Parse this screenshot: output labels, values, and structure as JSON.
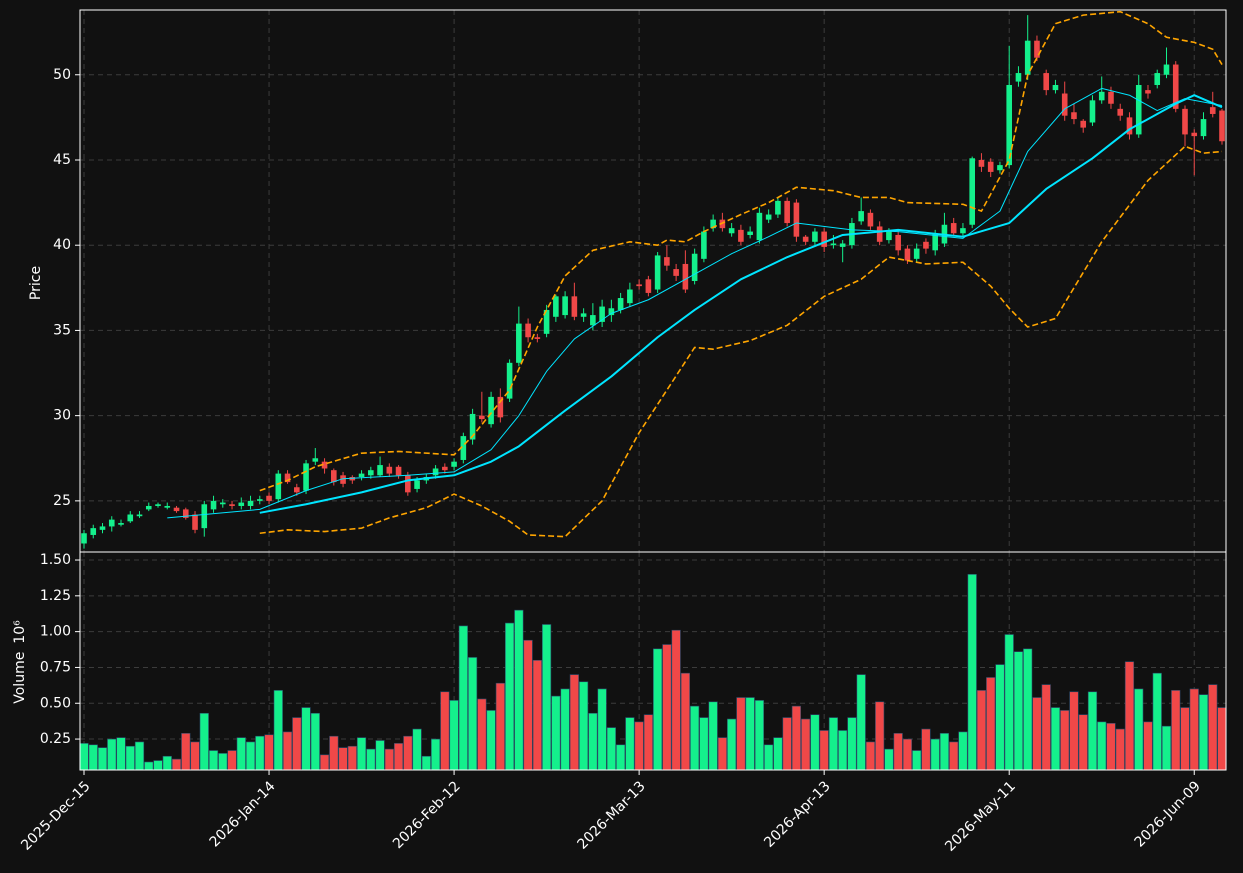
{
  "chart_data": [
    {
      "type": "candlestick",
      "ylabel": "Price",
      "ylim": [
        22.0,
        53.8
      ],
      "yticks": [
        25,
        30,
        35,
        40,
        45,
        50
      ],
      "grid": true,
      "up_color": "#14f08c",
      "down_color": "#f04848",
      "open": [
        22.5,
        23.0,
        23.3,
        23.5,
        23.6,
        23.8,
        24.1,
        24.5,
        24.7,
        24.6,
        24.6,
        24.5,
        24.2,
        23.4,
        24.5,
        24.8,
        24.8,
        24.7,
        24.7,
        25.0,
        25.3,
        25.1,
        26.6,
        25.8,
        25.6,
        27.3,
        27.3,
        26.8,
        26.5,
        26.4,
        26.4,
        26.5,
        26.5,
        27.0,
        27.0,
        26.5,
        25.7,
        26.2,
        26.5,
        27.0,
        27.0,
        27.4,
        28.6,
        30.0,
        29.5,
        31.1,
        31.0,
        33.1,
        35.4,
        34.6,
        34.8,
        35.8,
        35.9,
        37.0,
        35.8,
        35.3,
        35.5,
        35.9,
        36.2,
        36.6,
        37.7,
        38.0,
        37.4,
        39.3,
        38.6,
        38.9,
        37.9,
        39.2,
        41.0,
        41.5,
        40.7,
        40.9,
        40.6,
        40.3,
        41.5,
        41.8,
        42.6,
        42.5,
        40.5,
        40.2,
        40.8,
        40.0,
        39.9,
        40.0,
        41.4,
        41.9,
        41.1,
        40.3,
        40.6,
        39.8,
        39.2,
        40.2,
        39.7,
        40.1,
        41.3,
        40.7,
        41.2,
        45.0,
        44.9,
        44.4,
        44.7,
        49.6,
        50.0,
        52.0,
        50.1,
        49.1,
        48.9,
        47.8,
        47.3,
        47.2,
        48.5,
        49.0,
        48.0,
        47.5,
        46.5,
        49.1,
        49.4,
        50.0,
        50.6,
        48.0,
        46.6,
        46.4,
        48.1,
        47.9
      ],
      "high": [
        23.3,
        23.6,
        23.7,
        24.1,
        23.9,
        24.4,
        24.4,
        24.9,
        24.9,
        24.9,
        24.7,
        24.6,
        24.4,
        25.0,
        25.3,
        25.1,
        25.0,
        25.2,
        25.3,
        25.3,
        25.5,
        26.8,
        26.8,
        26.0,
        27.4,
        28.1,
        27.5,
        26.9,
        26.7,
        26.5,
        26.8,
        27.0,
        27.6,
        27.2,
        27.1,
        26.7,
        26.4,
        26.6,
        27.1,
        27.2,
        27.5,
        29.0,
        30.4,
        31.4,
        31.4,
        31.6,
        33.3,
        36.4,
        35.7,
        34.8,
        36.5,
        37.1,
        37.3,
        37.8,
        36.3,
        36.6,
        36.8,
        36.8,
        37.2,
        37.8,
        38.0,
        38.2,
        39.6,
        40.0,
        38.9,
        39.7,
        39.8,
        41.1,
        41.8,
        41.9,
        41.3,
        41.2,
        41.1,
        42.2,
        42.1,
        42.8,
        42.8,
        42.7,
        40.6,
        41.0,
        41.0,
        40.6,
        40.3,
        41.6,
        42.8,
        42.1,
        41.4,
        41.0,
        40.9,
        40.0,
        40.1,
        40.4,
        40.9,
        41.9,
        41.6,
        41.3,
        45.2,
        45.4,
        45.1,
        44.9,
        51.7,
        50.5,
        53.5,
        52.3,
        50.3,
        49.7,
        49.6,
        48.3,
        47.4,
        48.8,
        49.9,
        49.3,
        48.3,
        47.8,
        50.0,
        49.4,
        50.3,
        51.6,
        50.8,
        48.2,
        46.8,
        47.8,
        49.0,
        48.0
      ],
      "low": [
        22.2,
        22.8,
        23.1,
        23.2,
        23.5,
        23.7,
        24.0,
        24.4,
        24.6,
        24.5,
        24.3,
        23.9,
        23.1,
        22.9,
        24.3,
        24.6,
        24.5,
        24.5,
        24.5,
        24.8,
        24.8,
        24.9,
        26.0,
        25.3,
        25.4,
        27.1,
        26.6,
        25.9,
        25.8,
        26.0,
        26.2,
        26.3,
        26.4,
        26.4,
        26.3,
        25.3,
        25.5,
        26.0,
        26.3,
        26.6,
        26.8,
        27.2,
        28.3,
        29.6,
        29.3,
        29.6,
        30.8,
        32.9,
        34.3,
        34.3,
        34.6,
        35.5,
        35.7,
        35.6,
        35.5,
        35.0,
        35.2,
        35.5,
        36.0,
        36.4,
        37.4,
        37.0,
        37.2,
        38.5,
        37.9,
        37.2,
        37.7,
        39.0,
        40.8,
        40.8,
        40.5,
        40.0,
        40.4,
        40.1,
        41.3,
        41.6,
        41.1,
        40.2,
        40.0,
        40.0,
        39.6,
        39.8,
        39.0,
        39.8,
        41.2,
        40.9,
        40.0,
        40.1,
        39.4,
        38.9,
        39.0,
        39.5,
        39.4,
        39.9,
        40.5,
        40.5,
        41.0,
        44.3,
        44.0,
        44.2,
        44.5,
        49.3,
        49.7,
        50.8,
        48.8,
        48.9,
        47.3,
        47.1,
        46.6,
        47.0,
        48.3,
        48.0,
        47.3,
        46.2,
        46.3,
        48.6,
        49.2,
        49.8,
        47.8,
        45.8,
        44.1,
        46.2,
        47.5,
        45.9
      ],
      "close": [
        23.1,
        23.4,
        23.5,
        23.9,
        23.7,
        24.2,
        24.2,
        24.7,
        24.8,
        24.7,
        24.4,
        24.0,
        23.3,
        24.8,
        25.0,
        24.9,
        24.7,
        24.9,
        25.0,
        25.1,
        25.0,
        26.6,
        26.1,
        25.5,
        27.2,
        27.5,
        26.9,
        26.1,
        26.0,
        26.2,
        26.6,
        26.8,
        27.1,
        26.6,
        26.5,
        25.5,
        26.2,
        26.4,
        26.9,
        26.8,
        27.3,
        28.8,
        30.1,
        29.8,
        31.1,
        29.9,
        33.1,
        35.4,
        34.6,
        34.5,
        36.2,
        37.0,
        37.0,
        35.8,
        36.0,
        35.9,
        36.4,
        36.3,
        36.9,
        37.4,
        37.6,
        37.2,
        39.4,
        38.8,
        38.2,
        37.4,
        39.5,
        40.8,
        41.5,
        41.0,
        41.0,
        40.2,
        40.8,
        41.9,
        41.8,
        42.6,
        41.3,
        40.5,
        40.2,
        40.8,
        39.9,
        40.1,
        40.1,
        41.3,
        42.0,
        41.1,
        40.2,
        40.8,
        39.7,
        39.1,
        39.8,
        39.8,
        40.7,
        41.2,
        40.7,
        41.0,
        45.1,
        44.6,
        44.3,
        44.7,
        49.4,
        50.1,
        52.0,
        51.0,
        49.1,
        49.4,
        47.6,
        47.4,
        46.9,
        48.5,
        49.0,
        48.3,
        47.6,
        46.5,
        49.4,
        48.9,
        50.1,
        50.6,
        48.0,
        46.5,
        46.4,
        47.4,
        47.7,
        46.1
      ],
      "lines": [
        {
          "color": "#00e5ff",
          "width": 1,
          "dash": false,
          "x": [
            9,
            19,
            24,
            28,
            35,
            40,
            44,
            47,
            50,
            53,
            57,
            61,
            66,
            70,
            74,
            77,
            83,
            88,
            95,
            99,
            102,
            106,
            110,
            113,
            116,
            119,
            123
          ],
          "values": [
            24.0,
            24.5,
            25.6,
            26.3,
            26.5,
            26.7,
            28.0,
            30.0,
            32.6,
            34.5,
            36.0,
            36.8,
            38.3,
            39.5,
            40.5,
            41.3,
            40.9,
            40.8,
            40.4,
            42.0,
            45.5,
            48.0,
            49.2,
            48.8,
            47.9,
            48.6,
            48.2
          ]
        },
        {
          "color": "#00e5ff",
          "width": 2,
          "dash": false,
          "x": [
            19,
            24,
            30,
            35,
            40,
            44,
            47,
            52,
            57,
            62,
            66,
            71,
            76,
            82,
            88,
            95,
            100,
            104,
            109,
            113,
            118,
            120,
            123
          ],
          "values": [
            24.3,
            24.8,
            25.5,
            26.2,
            26.5,
            27.3,
            28.2,
            30.3,
            32.3,
            34.6,
            36.2,
            38.0,
            39.3,
            40.6,
            40.9,
            40.5,
            41.3,
            43.3,
            45.1,
            46.8,
            48.3,
            48.8,
            48.1
          ]
        },
        {
          "color": "#ffa500",
          "width": 1.6,
          "dash": true,
          "x": [
            19,
            22,
            25,
            30,
            34,
            40,
            42,
            46,
            49,
            52,
            55,
            59,
            62,
            63,
            65,
            67,
            71,
            74,
            77,
            81,
            84,
            87,
            89,
            95,
            97,
            100,
            102,
            105,
            108,
            112,
            115,
            117,
            120,
            122,
            123
          ],
          "values": [
            25.6,
            26.2,
            27.0,
            27.8,
            27.9,
            27.7,
            28.8,
            31.5,
            35.2,
            38.2,
            39.7,
            40.2,
            40.0,
            40.3,
            40.2,
            40.8,
            41.8,
            42.5,
            43.4,
            43.2,
            42.8,
            42.8,
            42.5,
            42.4,
            42.0,
            45.0,
            50.0,
            53.0,
            53.5,
            53.7,
            53.0,
            52.2,
            51.9,
            51.5,
            50.6
          ]
        },
        {
          "color": "#ffa500",
          "width": 1.6,
          "dash": true,
          "x": [
            19,
            22,
            26,
            30,
            33,
            37,
            40,
            43,
            46,
            48,
            52,
            56,
            60,
            63,
            66,
            68,
            72,
            76,
            80,
            84,
            87,
            91,
            95,
            98,
            100,
            102,
            105,
            110,
            115,
            119,
            121,
            123
          ],
          "values": [
            23.1,
            23.3,
            23.2,
            23.4,
            24.0,
            24.6,
            25.4,
            24.7,
            23.8,
            23.0,
            22.9,
            25.0,
            29.0,
            31.5,
            34.0,
            33.9,
            34.4,
            35.3,
            37.0,
            38.0,
            39.3,
            38.9,
            39.0,
            37.6,
            36.3,
            35.2,
            35.7,
            40.2,
            43.8,
            45.8,
            45.4,
            45.5
          ]
        }
      ]
    },
    {
      "type": "bar",
      "ylabel": "Volume",
      "scale_label": "10⁶",
      "ylim": [
        0.034,
        1.556
      ],
      "yticks": [
        0.25,
        {
          "value": 0.5,
          "label": "0.50"
        },
        0.75,
        {
          "value": 1,
          "label": "1.00"
        },
        1.25,
        {
          "value": 1.5,
          "label": "1.50"
        }
      ],
      "grid": true,
      "categories": [
        "2025-Dec-15",
        null,
        null,
        null,
        null,
        null,
        null,
        null,
        null,
        null,
        null,
        null,
        null,
        null,
        null,
        null,
        null,
        null,
        null,
        null,
        "2026-Jan-14",
        null,
        null,
        null,
        null,
        null,
        null,
        null,
        null,
        null,
        null,
        null,
        null,
        null,
        null,
        null,
        null,
        null,
        null,
        null,
        "2026-Feb-12",
        null,
        null,
        null,
        null,
        null,
        null,
        null,
        null,
        null,
        null,
        null,
        null,
        null,
        null,
        null,
        null,
        null,
        null,
        null,
        "2026-Mar-13",
        null,
        null,
        null,
        null,
        null,
        null,
        null,
        null,
        null,
        null,
        null,
        null,
        null,
        null,
        null,
        null,
        null,
        null,
        null,
        "2026-Apr-13",
        null,
        null,
        null,
        null,
        null,
        null,
        null,
        null,
        null,
        null,
        null,
        null,
        null,
        null,
        null,
        null,
        null,
        null,
        null,
        "2026-May-11",
        null,
        null,
        null,
        null,
        null,
        null,
        null,
        null,
        null,
        null,
        null,
        null,
        null,
        null,
        null,
        null,
        null,
        null,
        null,
        "2026-Jun-09",
        null,
        null,
        null
      ],
      "values": [
        0.22,
        0.21,
        0.19,
        0.25,
        0.26,
        0.2,
        0.23,
        0.09,
        0.1,
        0.13,
        0.11,
        0.29,
        0.23,
        0.43,
        0.17,
        0.15,
        0.17,
        0.26,
        0.23,
        0.27,
        0.28,
        0.59,
        0.3,
        0.4,
        0.47,
        0.43,
        0.14,
        0.27,
        0.19,
        0.2,
        0.26,
        0.18,
        0.24,
        0.18,
        0.22,
        0.27,
        0.32,
        0.13,
        0.25,
        0.58,
        0.52,
        1.04,
        0.82,
        0.53,
        0.45,
        0.64,
        1.06,
        1.15,
        0.94,
        0.8,
        1.05,
        0.55,
        0.6,
        0.7,
        0.65,
        0.43,
        0.6,
        0.33,
        0.21,
        0.4,
        0.37,
        0.42,
        0.88,
        0.91,
        1.01,
        0.71,
        0.48,
        0.4,
        0.51,
        0.26,
        0.39,
        0.54,
        0.54,
        0.52,
        0.21,
        0.26,
        0.4,
        0.48,
        0.39,
        0.42,
        0.31,
        0.4,
        0.31,
        0.4,
        0.7,
        0.23,
        0.51,
        0.18,
        0.29,
        0.25,
        0.17,
        0.32,
        0.25,
        0.29,
        0.23,
        0.3,
        1.4,
        0.59,
        0.68,
        0.77,
        0.98,
        0.86,
        0.88,
        0.54,
        0.63,
        0.47,
        0.45,
        0.58,
        0.42,
        0.58,
        0.37,
        0.36,
        0.32,
        0.79,
        0.6,
        0.37,
        0.71,
        0.34,
        0.59,
        0.47,
        0.6,
        0.56,
        0.63,
        0.47
      ]
    }
  ]
}
